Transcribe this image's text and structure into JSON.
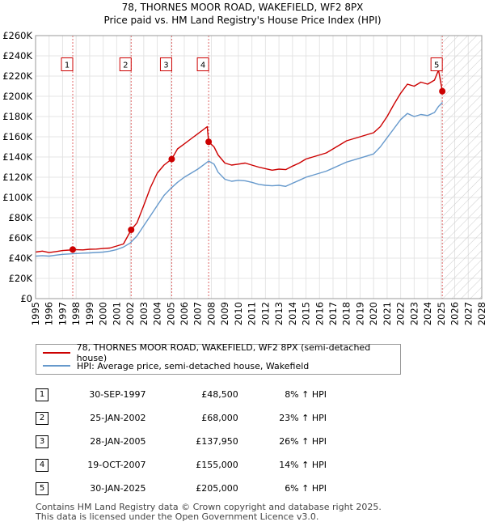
{
  "chart_data": {
    "type": "line",
    "title": "78, THORNES MOOR ROAD, WAKEFIELD, WF2 8PX",
    "subtitle": "Price paid vs. HM Land Registry's House Price Index (HPI)",
    "xlim": [
      1995,
      2028
    ],
    "ylim": [
      0,
      260000
    ],
    "x_ticks": [
      1995,
      1996,
      1997,
      1998,
      1999,
      2000,
      2001,
      2002,
      2003,
      2004,
      2005,
      2006,
      2007,
      2008,
      2009,
      2010,
      2011,
      2012,
      2013,
      2014,
      2015,
      2016,
      2017,
      2018,
      2019,
      2020,
      2021,
      2022,
      2023,
      2024,
      2025,
      2026,
      2027,
      2028
    ],
    "y_ticks": [
      0,
      20000,
      40000,
      60000,
      80000,
      100000,
      120000,
      140000,
      160000,
      180000,
      200000,
      220000,
      240000,
      260000
    ],
    "y_tick_labels": [
      "£0",
      "£20K",
      "£40K",
      "£60K",
      "£80K",
      "£100K",
      "£120K",
      "£140K",
      "£160K",
      "£180K",
      "£200K",
      "£220K",
      "£240K",
      "£260K"
    ],
    "hatch_from": 2025.08,
    "series": [
      {
        "name": "78, THORNES MOOR ROAD, WAKEFIELD, WF2 8PX (semi-detached house)",
        "color": "#cc0000",
        "points": [
          [
            1995.0,
            46000
          ],
          [
            1995.5,
            47000
          ],
          [
            1996.0,
            45500
          ],
          [
            1996.5,
            46500
          ],
          [
            1997.0,
            47500
          ],
          [
            1997.5,
            48000
          ],
          [
            1997.75,
            48500
          ],
          [
            1998.5,
            48200
          ],
          [
            1999.0,
            48800
          ],
          [
            1999.5,
            49000
          ],
          [
            2000.0,
            49500
          ],
          [
            2000.5,
            50000
          ],
          [
            2001.0,
            52000
          ],
          [
            2001.5,
            54000
          ],
          [
            2002.07,
            68000
          ],
          [
            2002.5,
            75000
          ],
          [
            2003.0,
            92000
          ],
          [
            2003.5,
            110000
          ],
          [
            2004.0,
            124000
          ],
          [
            2004.5,
            132000
          ],
          [
            2005.07,
            137950
          ],
          [
            2005.5,
            148000
          ],
          [
            2006.0,
            153000
          ],
          [
            2006.5,
            158000
          ],
          [
            2007.0,
            163000
          ],
          [
            2007.5,
            168000
          ],
          [
            2007.7,
            170000
          ],
          [
            2007.8,
            155000
          ],
          [
            2008.2,
            150000
          ],
          [
            2008.5,
            142000
          ],
          [
            2009.0,
            134000
          ],
          [
            2009.5,
            132000
          ],
          [
            2010.0,
            133000
          ],
          [
            2010.5,
            134000
          ],
          [
            2011.0,
            132000
          ],
          [
            2011.5,
            130000
          ],
          [
            2012.0,
            128500
          ],
          [
            2012.5,
            127000
          ],
          [
            2013.0,
            128000
          ],
          [
            2013.5,
            127500
          ],
          [
            2014.0,
            131000
          ],
          [
            2014.5,
            134000
          ],
          [
            2015.0,
            138000
          ],
          [
            2015.5,
            140000
          ],
          [
            2016.0,
            142000
          ],
          [
            2016.5,
            144000
          ],
          [
            2017.0,
            148000
          ],
          [
            2017.5,
            152000
          ],
          [
            2018.0,
            156000
          ],
          [
            2018.5,
            158000
          ],
          [
            2019.0,
            160000
          ],
          [
            2019.5,
            162000
          ],
          [
            2020.0,
            164000
          ],
          [
            2020.5,
            170000
          ],
          [
            2021.0,
            180000
          ],
          [
            2021.5,
            192000
          ],
          [
            2022.0,
            203000
          ],
          [
            2022.5,
            212000
          ],
          [
            2023.0,
            210000
          ],
          [
            2023.5,
            214000
          ],
          [
            2024.0,
            212000
          ],
          [
            2024.5,
            216000
          ],
          [
            2024.8,
            226000
          ],
          [
            2025.08,
            205000
          ]
        ]
      },
      {
        "name": "HPI: Average price, semi-detached house, Wakefield",
        "color": "#6699cc",
        "points": [
          [
            1995.0,
            42000
          ],
          [
            1995.5,
            42500
          ],
          [
            1996.0,
            42000
          ],
          [
            1996.5,
            43000
          ],
          [
            1997.0,
            43800
          ],
          [
            1997.5,
            44200
          ],
          [
            1998.0,
            44600
          ],
          [
            1998.5,
            45000
          ],
          [
            1999.0,
            45200
          ],
          [
            1999.5,
            45600
          ],
          [
            2000.0,
            46000
          ],
          [
            2000.5,
            47000
          ],
          [
            2001.0,
            48500
          ],
          [
            2001.5,
            51000
          ],
          [
            2002.0,
            55000
          ],
          [
            2002.5,
            62000
          ],
          [
            2003.0,
            72000
          ],
          [
            2003.5,
            82000
          ],
          [
            2004.0,
            92000
          ],
          [
            2004.5,
            102000
          ],
          [
            2005.0,
            109000
          ],
          [
            2005.5,
            115000
          ],
          [
            2006.0,
            120000
          ],
          [
            2006.5,
            124000
          ],
          [
            2007.0,
            128000
          ],
          [
            2007.5,
            133000
          ],
          [
            2007.8,
            136000
          ],
          [
            2008.2,
            133000
          ],
          [
            2008.5,
            125000
          ],
          [
            2009.0,
            118000
          ],
          [
            2009.5,
            116000
          ],
          [
            2010.0,
            117000
          ],
          [
            2010.5,
            116500
          ],
          [
            2011.0,
            115000
          ],
          [
            2011.5,
            113000
          ],
          [
            2012.0,
            112000
          ],
          [
            2012.5,
            111500
          ],
          [
            2013.0,
            112000
          ],
          [
            2013.5,
            111000
          ],
          [
            2014.0,
            114000
          ],
          [
            2014.5,
            117000
          ],
          [
            2015.0,
            120000
          ],
          [
            2015.5,
            122000
          ],
          [
            2016.0,
            124000
          ],
          [
            2016.5,
            126000
          ],
          [
            2017.0,
            129000
          ],
          [
            2017.5,
            132000
          ],
          [
            2018.0,
            135000
          ],
          [
            2018.5,
            137000
          ],
          [
            2019.0,
            139000
          ],
          [
            2019.5,
            141000
          ],
          [
            2020.0,
            143000
          ],
          [
            2020.5,
            150000
          ],
          [
            2021.0,
            159000
          ],
          [
            2021.5,
            168000
          ],
          [
            2022.0,
            177000
          ],
          [
            2022.5,
            183000
          ],
          [
            2023.0,
            180000
          ],
          [
            2023.5,
            182000
          ],
          [
            2024.0,
            181000
          ],
          [
            2024.5,
            184000
          ],
          [
            2024.8,
            190000
          ],
          [
            2025.1,
            194000
          ]
        ]
      }
    ],
    "sales": [
      {
        "n": "1",
        "x": 1997.75,
        "y": 48500
      },
      {
        "n": "2",
        "x": 2002.07,
        "y": 68000
      },
      {
        "n": "3",
        "x": 2005.07,
        "y": 137950
      },
      {
        "n": "4",
        "x": 2007.8,
        "y": 155000
      },
      {
        "n": "5",
        "x": 2025.08,
        "y": 205000
      }
    ],
    "marker_label_y": 230000
  },
  "legend": {
    "line1": "78, THORNES MOOR ROAD, WAKEFIELD, WF2 8PX (semi-detached house)",
    "line2": "HPI: Average price, semi-detached house, Wakefield",
    "color1": "#cc0000",
    "color2": "#6699cc"
  },
  "table": [
    {
      "n": "1",
      "date": "30-SEP-1997",
      "price": "£48,500",
      "hpi": "8% ↑ HPI"
    },
    {
      "n": "2",
      "date": "25-JAN-2002",
      "price": "£68,000",
      "hpi": "23% ↑ HPI"
    },
    {
      "n": "3",
      "date": "28-JAN-2005",
      "price": "£137,950",
      "hpi": "26% ↑ HPI"
    },
    {
      "n": "4",
      "date": "19-OCT-2007",
      "price": "£155,000",
      "hpi": "14% ↑ HPI"
    },
    {
      "n": "5",
      "date": "30-JAN-2025",
      "price": "£205,000",
      "hpi": "6% ↑ HPI"
    }
  ],
  "footer": {
    "line1": "Contains HM Land Registry data © Crown copyright and database right 2025.",
    "line2": "This data is licensed under the Open Government Licence v3.0."
  }
}
